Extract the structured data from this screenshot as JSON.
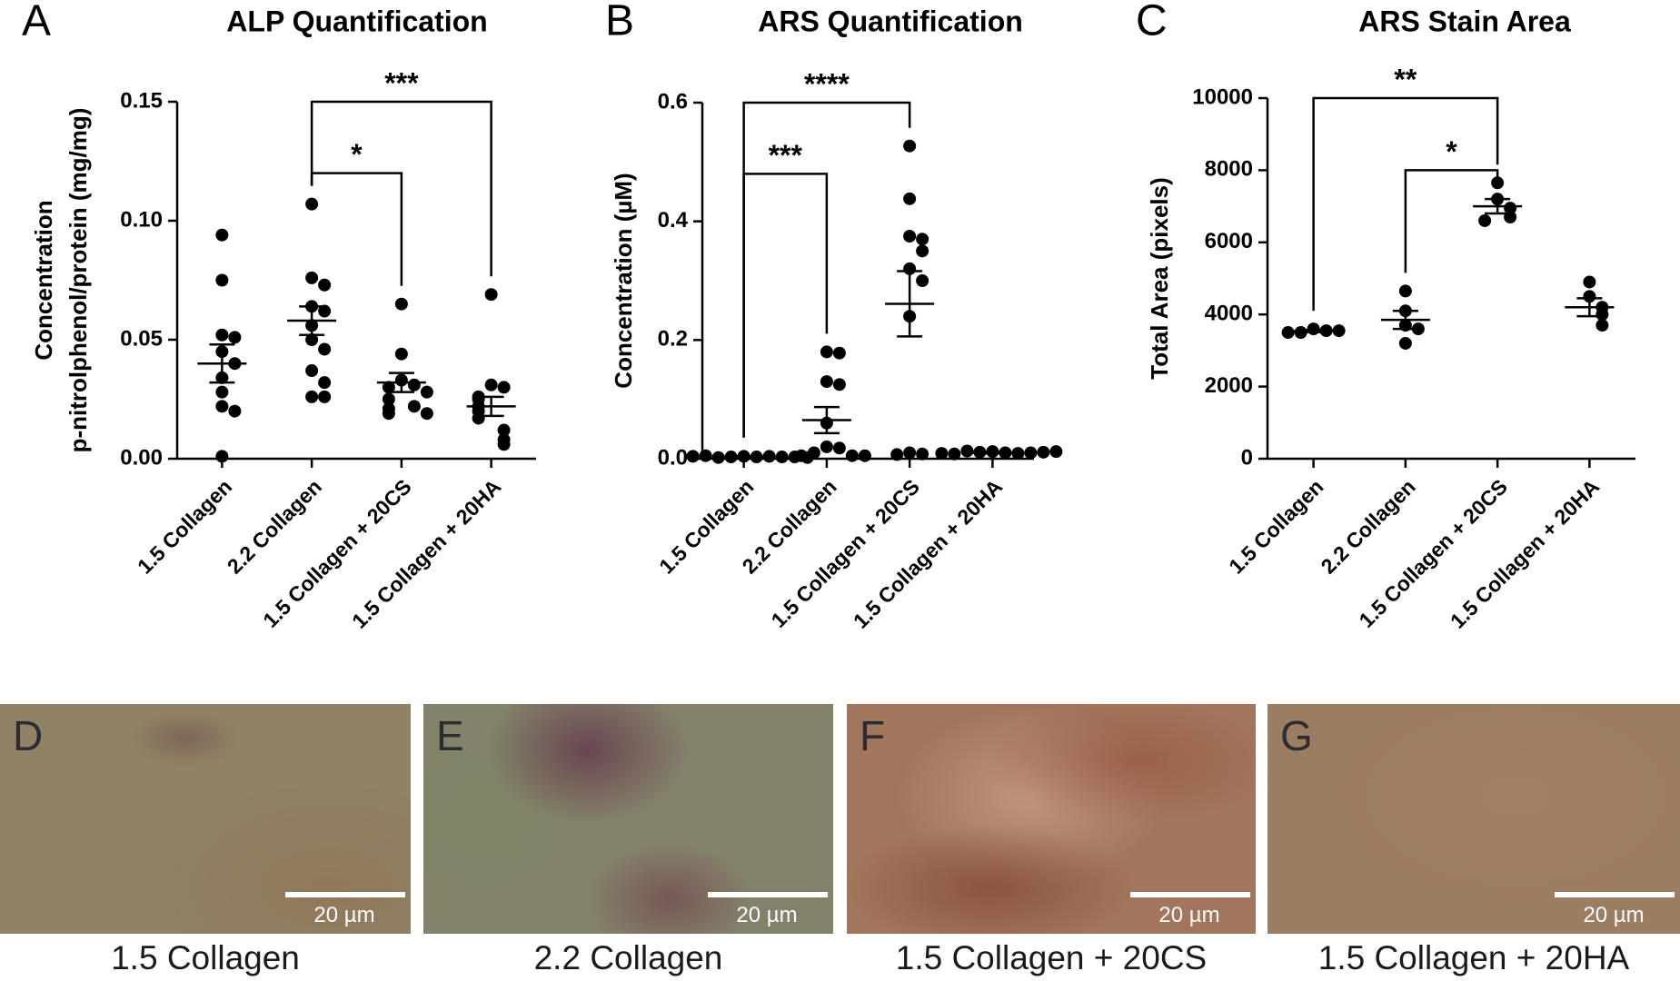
{
  "chart_data": [
    {
      "type": "dot",
      "panel_label": "A",
      "title": "ALP Quantification",
      "y_label": [
        "Concentration",
        "p-nitrolphenol/protein (mg/mg)"
      ],
      "categories": [
        "1.5 Collagen",
        "2.2 Collagen",
        "1.5 Collagen + 20CS",
        "1.5 Collagen + 20HA"
      ],
      "points": [
        [
          0.094,
          0.075,
          0.052,
          0.051,
          0.045,
          0.04,
          0.034,
          0.028,
          0.022,
          0.02,
          0.001
        ],
        [
          0.107,
          0.076,
          0.073,
          0.064,
          0.062,
          0.056,
          0.05,
          0.046,
          0.037,
          0.032,
          0.026,
          0.026
        ],
        [
          0.065,
          0.044,
          0.033,
          0.031,
          0.03,
          0.028,
          0.025,
          0.022,
          0.021,
          0.019,
          0.019
        ],
        [
          0.069,
          0.031,
          0.03,
          0.026,
          0.025,
          0.022,
          0.02,
          0.017,
          0.012,
          0.008,
          0.006
        ]
      ],
      "mean": [
        0.04,
        0.058,
        0.032,
        0.022
      ],
      "sem": [
        0.008,
        0.006,
        0.004,
        0.004
      ],
      "comparisons": [
        {
          "from": 1,
          "to": 3,
          "label": "***"
        },
        {
          "from": 1,
          "to": 2,
          "label": "*"
        }
      ],
      "ylim": [
        0,
        0.15
      ],
      "yticks": [
        {
          "value": 0,
          "label": "0.00"
        },
        0.05,
        {
          "value": 0.1,
          "label": "0.10"
        },
        0.15
      ],
      "color": "#000000"
    },
    {
      "type": "dot",
      "panel_label": "B",
      "title": "ARS Quantification",
      "y_label": [
        "Concentration (µM)"
      ],
      "categories": [
        "1.5 Collagen",
        "2.2 Collagen",
        "1.5 Collagen + 20CS",
        "1.5 Collagen + 20HA"
      ],
      "points": [
        [
          0.004,
          0.003,
          0.003,
          0.004,
          0.002,
          0.003,
          0.005,
          0.003,
          0.004,
          0.002
        ],
        [
          0.18,
          0.178,
          0.13,
          0.125,
          0.06,
          0.02,
          0.018,
          0.01,
          0.005,
          0.005,
          0.005
        ],
        [
          0.527,
          0.438,
          0.375,
          0.37,
          0.35,
          0.32,
          0.3,
          0.24,
          0.01,
          0.008,
          0.007
        ],
        [
          0.012,
          0.01,
          0.011,
          0.009,
          0.013,
          0.01,
          0.008,
          0.011,
          0.009,
          0.012
        ]
      ],
      "mean": [
        0.003,
        0.065,
        0.261,
        0.01
      ],
      "sem": [
        0.001,
        0.022,
        0.055,
        0.001
      ],
      "comparisons": [
        {
          "from": 0,
          "to": 2,
          "label": "****"
        },
        {
          "from": 0,
          "to": 1,
          "label": "***"
        }
      ],
      "ylim": [
        0,
        0.6
      ],
      "yticks": [
        {
          "value": 0,
          "label": "0.0"
        },
        0.2,
        0.4,
        0.6
      ],
      "color": "#000000"
    },
    {
      "type": "dot",
      "panel_label": "C",
      "title": "ARS Stain Area",
      "y_label": [
        "Total Area  (pixels)"
      ],
      "categories": [
        "1.5 Collagen",
        "2.2 Collagen",
        "1.5 Collagen + 20CS",
        "1.5 Collagen + 20HA"
      ],
      "points": [
        [
          3600,
          3550,
          3500,
          3550,
          3500
        ],
        [
          4650,
          4100,
          3700,
          3600,
          3200
        ],
        [
          7650,
          7200,
          6950,
          6700,
          6600
        ],
        [
          4900,
          4500,
          4200,
          4000,
          3700
        ]
      ],
      "mean": [
        3540,
        3850,
        7000,
        4200
      ],
      "sem": [
        30,
        250,
        200,
        250
      ],
      "comparisons": [
        {
          "from": 0,
          "to": 2,
          "label": "**"
        },
        {
          "from": 1,
          "to": 2,
          "label": "*"
        }
      ],
      "ylim": [
        0,
        10000
      ],
      "yticks": [
        0,
        2000,
        4000,
        6000,
        8000,
        10000
      ],
      "color": "#000000"
    }
  ],
  "panels": [
    {
      "label": "D",
      "scale_bar": "20 µm",
      "caption": "1.5 Collagen"
    },
    {
      "label": "E",
      "scale_bar": "20 µm",
      "caption": "2.2 Collagen"
    },
    {
      "label": "F",
      "scale_bar": "20 µm",
      "caption": "1.5 Collagen + 20CS"
    },
    {
      "label": "G",
      "scale_bar": "20 µm",
      "caption": "1.5 Collagen + 20HA"
    }
  ]
}
